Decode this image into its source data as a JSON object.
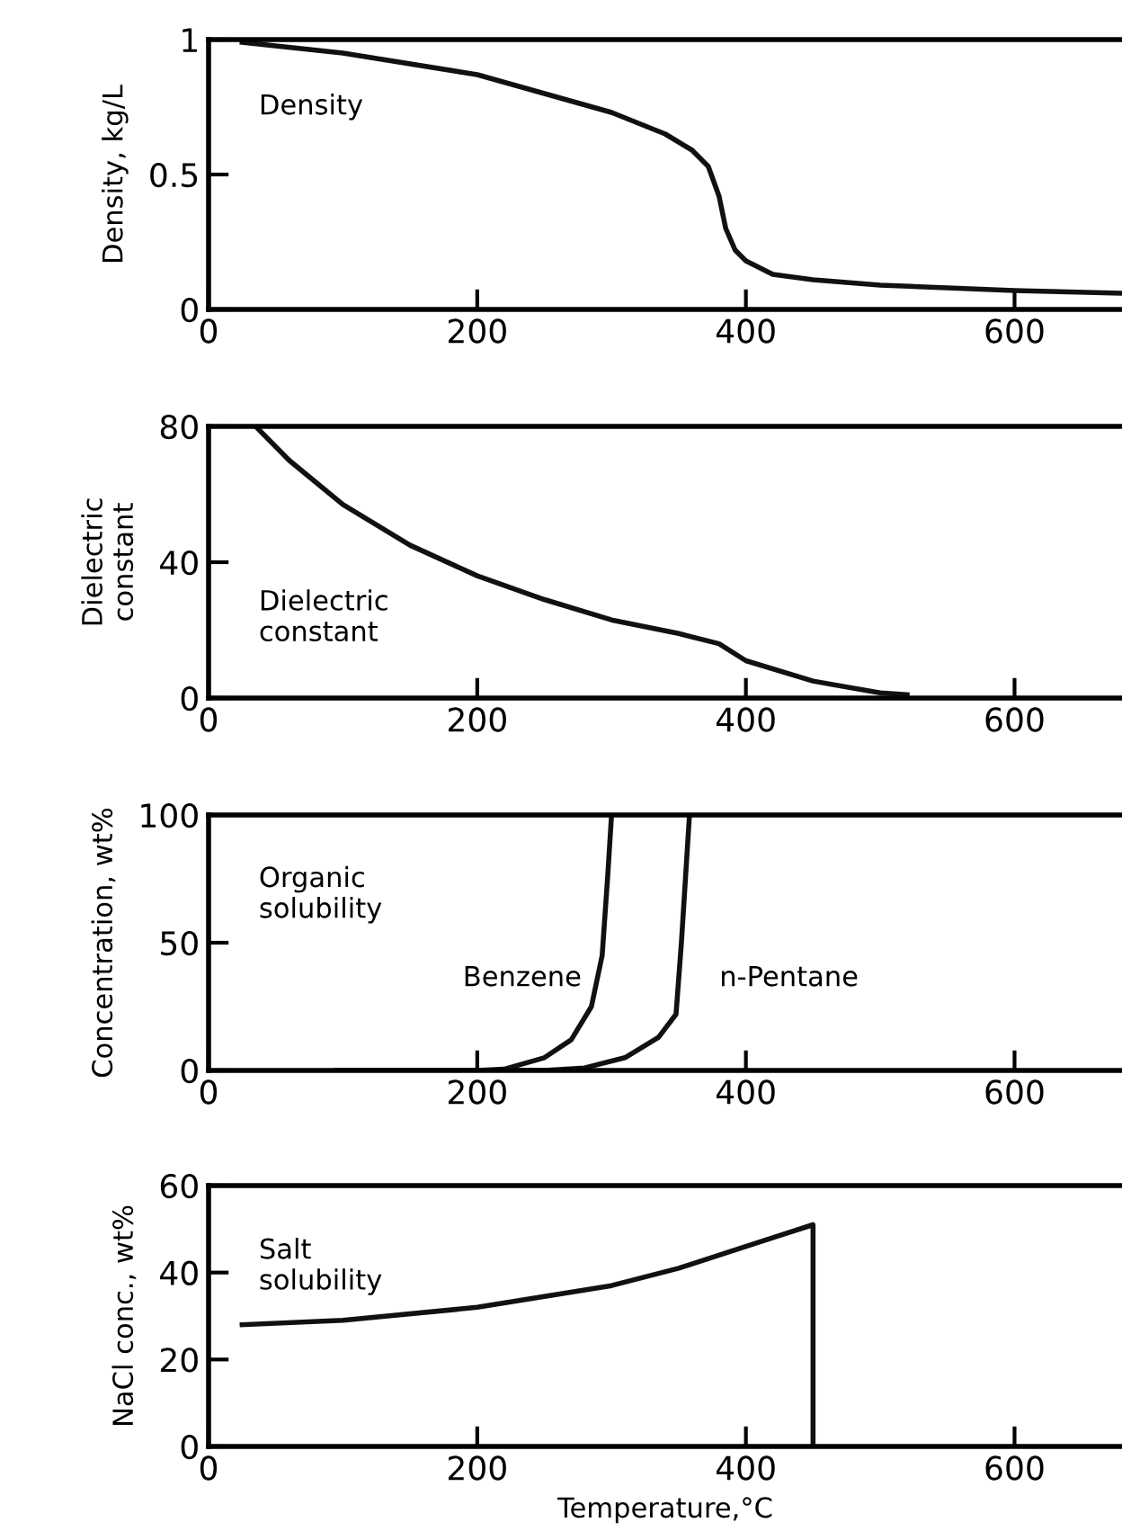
{
  "chart_data": [
    {
      "type": "line",
      "ylabel": "Density, kg/L",
      "annotations": [
        "Density"
      ],
      "xlim": [
        0,
        680
      ],
      "xticks": [
        0,
        200,
        400,
        600
      ],
      "ylim": [
        0,
        1
      ],
      "yticks": [
        0,
        0.5,
        1
      ],
      "grid": false,
      "legend": false,
      "series": [
        {
          "color": "#111111",
          "x": [
            25,
            100,
            200,
            300,
            340,
            360,
            372,
            380,
            385,
            392,
            400,
            420,
            450,
            500,
            600,
            680
          ],
          "values": [
            0.99,
            0.95,
            0.87,
            0.73,
            0.65,
            0.59,
            0.53,
            0.42,
            0.3,
            0.22,
            0.18,
            0.13,
            0.11,
            0.09,
            0.07,
            0.06
          ]
        }
      ]
    },
    {
      "type": "line",
      "ylabel": "Dielectric\nconstant",
      "annotations": [
        "Dielectric\nconstant"
      ],
      "xlim": [
        0,
        680
      ],
      "xticks": [
        0,
        200,
        400,
        600
      ],
      "ylim": [
        0,
        80
      ],
      "yticks": [
        0,
        40,
        80
      ],
      "grid": false,
      "legend": false,
      "series": [
        {
          "color": "#111111",
          "x": [
            35,
            60,
            100,
            150,
            200,
            250,
            300,
            350,
            380,
            400,
            450,
            500,
            520
          ],
          "values": [
            80,
            70,
            57,
            45,
            36,
            29,
            23,
            19,
            16,
            11,
            5,
            1.5,
            1
          ]
        }
      ]
    },
    {
      "type": "line",
      "ylabel": "Concentration, wt%",
      "annotations": [
        "Organic\nsolubility"
      ],
      "xlim": [
        0,
        680
      ],
      "xticks": [
        0,
        200,
        400,
        600
      ],
      "ylim": [
        0,
        100
      ],
      "yticks": [
        0,
        50,
        100
      ],
      "grid": false,
      "legend": false,
      "series": [
        {
          "name": "Benzene",
          "color": "#111111",
          "x": [
            95,
            200,
            220,
            250,
            270,
            285,
            293,
            297,
            300
          ],
          "values": [
            0,
            0,
            0.5,
            5,
            12,
            25,
            45,
            75,
            100
          ]
        },
        {
          "name": "n-Pentane",
          "color": "#111111",
          "x": [
            150,
            250,
            280,
            310,
            335,
            348,
            352,
            355,
            358
          ],
          "values": [
            0,
            0,
            1,
            5,
            13,
            22,
            50,
            75,
            100
          ]
        }
      ]
    },
    {
      "type": "line",
      "ylabel": "NaCl conc., wt%",
      "xlabel": "Temperature,°C",
      "annotations": [
        "Salt\nsolubility"
      ],
      "xlim": [
        0,
        680
      ],
      "xticks": [
        0,
        200,
        400,
        600
      ],
      "ylim": [
        0,
        60
      ],
      "yticks": [
        0,
        20,
        40,
        60
      ],
      "grid": false,
      "legend": false,
      "series": [
        {
          "color": "#111111",
          "x": [
            25,
            100,
            200,
            300,
            350,
            400,
            430,
            450,
            450
          ],
          "values": [
            28,
            29,
            32,
            37,
            41,
            46,
            49,
            51,
            0
          ]
        }
      ]
    }
  ]
}
